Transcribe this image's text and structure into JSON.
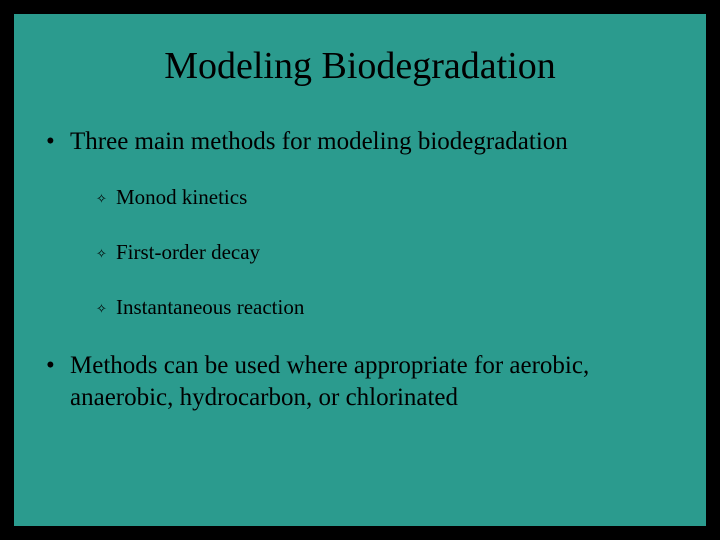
{
  "slide": {
    "background_color": "#2b9b8e",
    "border_color": "#000000",
    "text_color": "#000000",
    "title_fontsize": 38,
    "body_fontsize": 25,
    "sub_fontsize": 21,
    "title": "Modeling Biodegradation",
    "bullets": [
      {
        "marker": "•",
        "text": "Three main methods for modeling biodegradation",
        "sub": [
          {
            "marker": "✧",
            "text": "Monod kinetics"
          },
          {
            "marker": "✧",
            "text": "First-order decay"
          },
          {
            "marker": "✧",
            "text": "Instantaneous reaction"
          }
        ]
      },
      {
        "marker": "•",
        "text": "Methods can be used where appropriate for aerobic, anaerobic, hydrocarbon, or chlorinated"
      }
    ]
  }
}
